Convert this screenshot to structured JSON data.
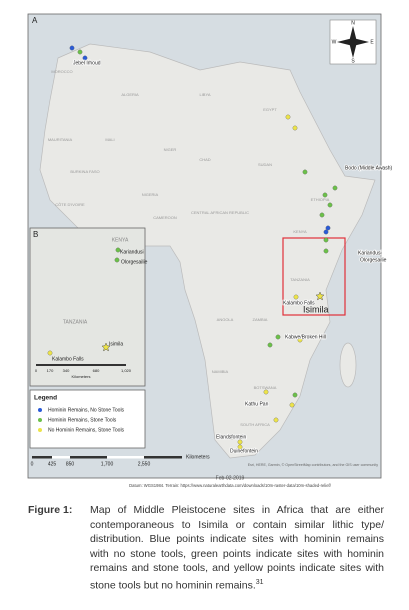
{
  "panel_a": "A",
  "panel_b": "B",
  "compass": {
    "n": "N",
    "e": "E",
    "s": "S",
    "w": "W"
  },
  "countries": [
    "MOROCCO",
    "ALGERIA",
    "LIBYA",
    "EGYPT",
    "MAURITANIA",
    "MALI",
    "NIGER",
    "CHAD",
    "SUDAN",
    "BURKINA FASO",
    "NIGERIA",
    "CÔTE D'IVOIRE",
    "CAMEROON",
    "CENTRAL AFRICAN REPUBLIC",
    "ETHIOPIA",
    "KENYA",
    "TANZANIA",
    "ANGOLA",
    "ZAMBIA",
    "NAMIBIA",
    "BOTSWANA",
    "SOUTH AFRICA"
  ],
  "sites": [
    {
      "name": "Jebel Irhoud",
      "kind": 0
    },
    {
      "name": "Bodo (Middle Awash)",
      "kind": 1
    },
    {
      "name": "Kariandusi",
      "kind": 1
    },
    {
      "name": "Olorgesailie",
      "kind": 1
    },
    {
      "name": "Kalambo Falls",
      "kind": 2
    },
    {
      "name": "Isimila",
      "kind": 2
    },
    {
      "name": "Kabwe/Broken Hill",
      "kind": 1
    },
    {
      "name": "Kathu Pan",
      "kind": 2
    },
    {
      "name": "Elandsfontein",
      "kind": 2
    },
    {
      "name": "Duinefontein",
      "kind": 2
    }
  ],
  "inset": {
    "countries": [
      "KENYA",
      "TANZANIA"
    ],
    "sites": [
      "Kariandusi",
      "Olorgesailie",
      "Isimila",
      "Kalambo Falls"
    ],
    "scale": [
      "0",
      "170",
      "340",
      "680",
      "1,020"
    ],
    "unit": "Kilometers"
  },
  "legend": {
    "title": "Legend",
    "items": [
      {
        "label": "Hominin Remains, No Stone Tools",
        "color": "#2a5bd7"
      },
      {
        "label": "Hominin Remains, Stone Tools",
        "color": "#6cc04a"
      },
      {
        "label": "No Hominin Remains, Stone Tools",
        "color": "#ece34a"
      }
    ]
  },
  "scale": {
    "labels": [
      "0",
      "425",
      "850",
      "1,700",
      "2,550"
    ],
    "unit": "Kilometers"
  },
  "date": "Feb-02-2019",
  "credits": "Esri, HERE, Garmin, © OpenStreetMap contributors, and the GIS user community",
  "datum": "Datum: WGS1984. Terrain: https://www.naturalearthdata.com/downloads/10m-raster-data/10m-shaded-relief/",
  "caption": {
    "label": "Figure 1:",
    "text": "Map of Middle Pleistocene sites in Africa that are either contemporaneous to Isimila or contain similar lithic type/ distribution. Blue points indicate sites with hominin remains with no stone tools, green points indicate sites with hominin remains and stone tools, and yellow points indicate sites with stone tools but no hominin remains.",
    "ref": "31"
  }
}
